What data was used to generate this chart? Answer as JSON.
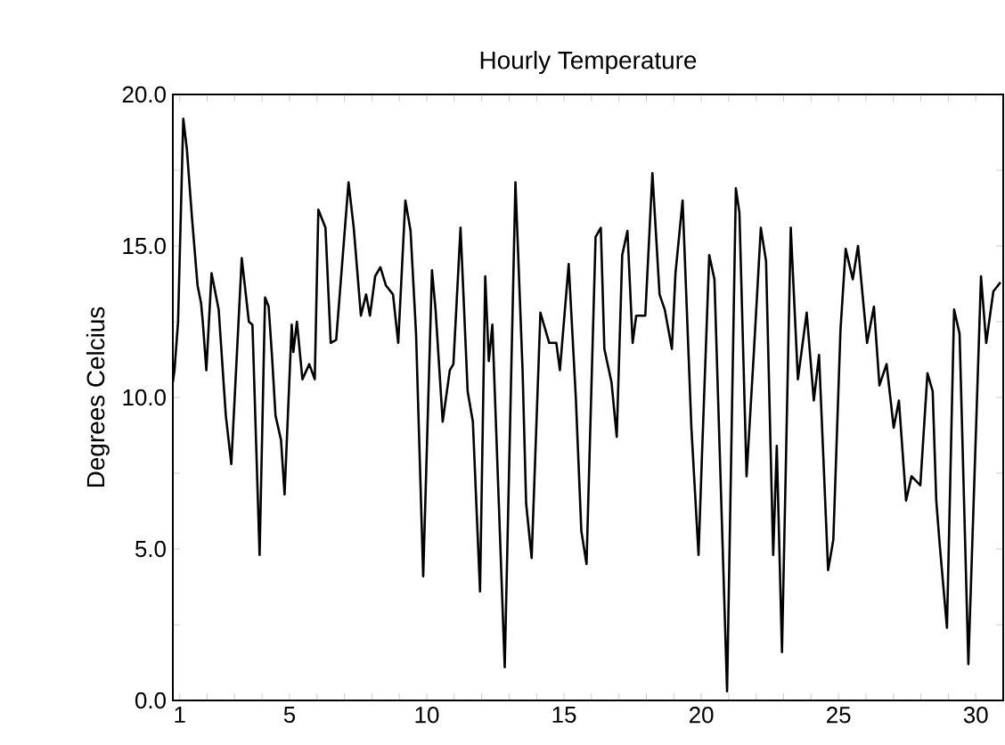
{
  "chart_data": {
    "type": "line",
    "title": "Hourly Temperature",
    "ylabel": "Degrees Celcius",
    "color": "#000000",
    "line_style": "solid",
    "xlim": [
      0.75,
      31
    ],
    "ylim": [
      0,
      20
    ],
    "xticks": [
      1,
      {
        "value": 2,
        "label": null
      },
      {
        "value": 3,
        "label": null
      },
      {
        "value": 4,
        "label": null
      },
      5,
      {
        "value": 6,
        "label": null
      },
      {
        "value": 7,
        "label": null
      },
      {
        "value": 8,
        "label": null
      },
      {
        "value": 9,
        "label": null
      },
      10,
      {
        "value": 11,
        "label": null
      },
      {
        "value": 12,
        "label": null
      },
      {
        "value": 13,
        "label": null
      },
      {
        "value": 14,
        "label": null
      },
      15,
      {
        "value": 16,
        "label": null
      },
      {
        "value": 17,
        "label": null
      },
      {
        "value": 18,
        "label": null
      },
      {
        "value": 19,
        "label": null
      },
      20,
      {
        "value": 21,
        "label": null
      },
      {
        "value": 22,
        "label": null
      },
      {
        "value": 23,
        "label": null
      },
      {
        "value": 24,
        "label": null
      },
      25,
      {
        "value": 26,
        "label": null
      },
      {
        "value": 27,
        "label": null
      },
      {
        "value": 28,
        "label": null
      },
      {
        "value": 29,
        "label": null
      },
      30
    ],
    "yticks": [
      {
        "value": 0,
        "label": "0.0"
      },
      {
        "value": 2.5,
        "label": null
      },
      {
        "value": 5,
        "label": "5.0"
      },
      {
        "value": 7.5,
        "label": null
      },
      {
        "value": 10,
        "label": "10.0"
      },
      {
        "value": 12.5,
        "label": null
      },
      {
        "value": 15,
        "label": "15.0"
      },
      {
        "value": 17.5,
        "label": null
      },
      {
        "value": 20,
        "label": "20.0"
      }
    ],
    "x": [
      0.75,
      0.81,
      0.94,
      1.13,
      1.26,
      1.45,
      1.65,
      1.78,
      1.84,
      1.97,
      2.16,
      2.42,
      2.62,
      2.68,
      2.88,
      3.07,
      3.26,
      3.52,
      3.65,
      3.91,
      4.11,
      4.24,
      4.36,
      4.49,
      4.69,
      4.82,
      5.08,
      5.14,
      5.27,
      5.47,
      5.72,
      5.92,
      6.05,
      6.31,
      6.5,
      6.7,
      7.15,
      7.34,
      7.6,
      7.79,
      7.93,
      8.12,
      8.31,
      8.51,
      8.77,
      8.96,
      9.22,
      9.41,
      9.61,
      9.87,
      10.19,
      10.32,
      10.58,
      10.84,
      10.97,
      11.23,
      11.49,
      11.68,
      11.94,
      12.13,
      12.26,
      12.39,
      12.84,
      13.23,
      13.49,
      13.62,
      13.82,
      14.14,
      14.46,
      14.72,
      14.85,
      15.17,
      15.43,
      15.63,
      15.82,
      16.15,
      16.34,
      16.47,
      16.73,
      16.92,
      17.12,
      17.31,
      17.5,
      17.63,
      17.96,
      18.22,
      18.48,
      18.67,
      18.93,
      19.06,
      19.32,
      19.64,
      19.9,
      20.03,
      20.29,
      20.48,
      20.94,
      21.26,
      21.39,
      21.65,
      21.91,
      22.17,
      22.36,
      22.62,
      22.75,
      22.94,
      23.26,
      23.52,
      23.84,
      24.1,
      24.29,
      24.62,
      24.81,
      25.07,
      25.26,
      25.52,
      25.71,
      26.04,
      26.29,
      26.49,
      26.75,
      27.01,
      27.2,
      27.46,
      27.66,
      27.98,
      28.24,
      28.43,
      28.56,
      28.69,
      28.95,
      29.21,
      29.41,
      29.73,
      30.19,
      30.38,
      30.64,
      30.9
    ],
    "values": [
      10.5,
      10.9,
      12.5,
      19.2,
      18.2,
      15.9,
      13.7,
      13.1,
      12.5,
      10.9,
      14.1,
      12.9,
      10.2,
      9.4,
      7.8,
      11.2,
      14.6,
      12.5,
      12.4,
      4.8,
      13.3,
      13.0,
      11.4,
      9.4,
      8.6,
      6.8,
      12.4,
      11.5,
      12.5,
      10.6,
      11.1,
      10.6,
      16.2,
      15.6,
      11.8,
      11.9,
      17.1,
      15.6,
      12.7,
      13.4,
      12.7,
      14.0,
      14.3,
      13.7,
      13.4,
      11.8,
      16.5,
      15.5,
      12.1,
      4.1,
      14.2,
      12.9,
      9.2,
      10.9,
      11.1,
      15.6,
      10.2,
      9.2,
      3.6,
      14.0,
      11.2,
      12.4,
      1.1,
      17.1,
      10.9,
      6.5,
      4.7,
      12.8,
      11.8,
      11.8,
      10.9,
      14.4,
      10.0,
      5.6,
      4.5,
      15.3,
      15.6,
      11.6,
      10.5,
      8.7,
      14.7,
      15.5,
      11.8,
      12.7,
      12.7,
      17.4,
      13.4,
      12.9,
      11.6,
      14.1,
      16.5,
      9.0,
      4.8,
      8.2,
      14.7,
      13.9,
      0.3,
      16.9,
      16.1,
      7.4,
      11.4,
      15.6,
      14.5,
      4.8,
      8.4,
      1.6,
      15.6,
      10.6,
      12.8,
      9.9,
      11.4,
      4.3,
      5.3,
      12.2,
      14.9,
      13.9,
      15.0,
      11.8,
      13.0,
      10.4,
      11.1,
      9.0,
      9.9,
      6.6,
      7.4,
      7.1,
      10.8,
      10.2,
      6.6,
      5.1,
      2.4,
      12.9,
      12.1,
      1.2,
      14.0,
      11.8,
      13.5,
      13.8
    ]
  }
}
